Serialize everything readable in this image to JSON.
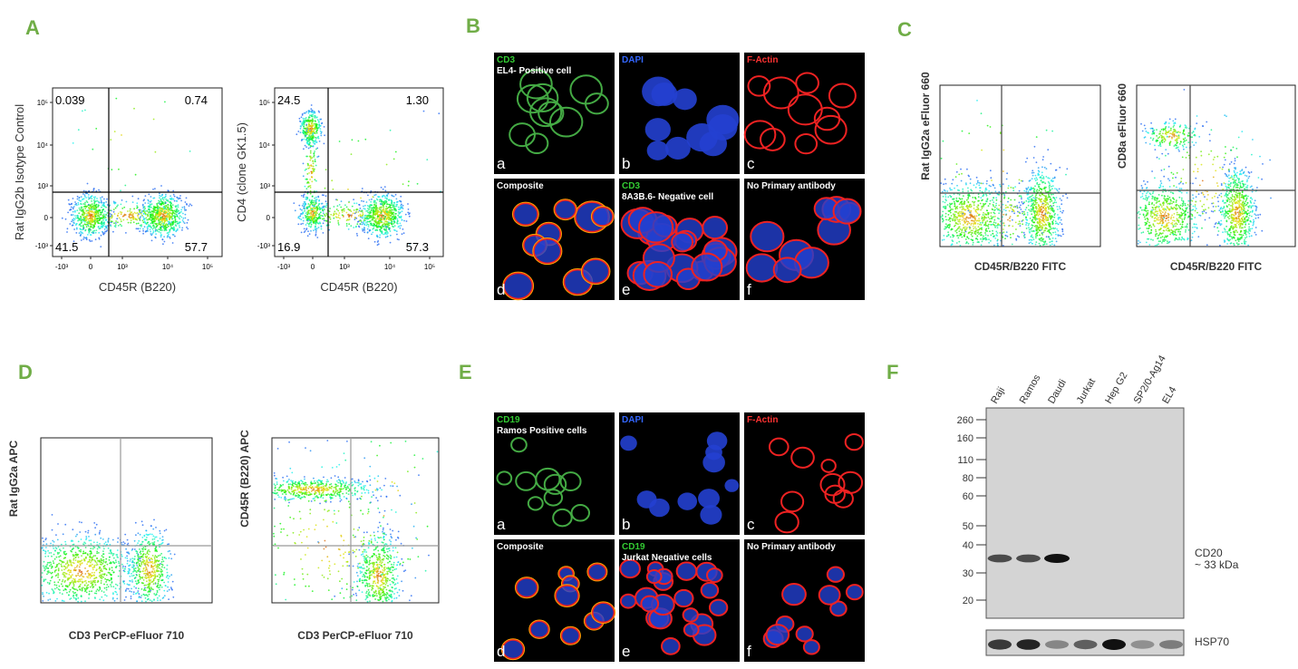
{
  "panels": {
    "A": {
      "label": "A",
      "plots": [
        {
          "y_label": "Rat IgG2b Isotype Control",
          "x_label": "CD45R (B220)",
          "quadrants": {
            "ul": "0.039",
            "ur": "0.74",
            "ll": "41.5",
            "lr": "57.7"
          },
          "x_ticks": [
            "-10³",
            "0",
            "10³",
            "10⁴",
            "10⁵"
          ],
          "y_ticks": [
            "10⁵",
            "10⁴",
            "10³",
            "0",
            "-10³"
          ]
        },
        {
          "y_label": "CD4 (clone GK1.5)",
          "x_label": "CD45R (B220)",
          "quadrants": {
            "ul": "24.5",
            "ur": "1.30",
            "ll": "16.9",
            "lr": "57.3"
          },
          "x_ticks": [
            "-10³",
            "0",
            "10³",
            "10⁴",
            "10⁵"
          ],
          "y_ticks": [
            "10⁵",
            "10⁴",
            "10³",
            "0",
            "-10³"
          ]
        }
      ]
    },
    "B": {
      "label": "B",
      "tiles": [
        {
          "stain": "CD3",
          "caption": "EL4- Positive cell",
          "letter": "a"
        },
        {
          "stain": "DAPI",
          "letter": "b"
        },
        {
          "stain": "F-Actin",
          "letter": "c"
        },
        {
          "caption": "Composite",
          "letter": "d"
        },
        {
          "stain": "CD3",
          "caption": "8A3B.6- Negative cell",
          "letter": "e"
        },
        {
          "caption": "No Primary antibody",
          "letter": "f"
        }
      ]
    },
    "C": {
      "label": "C",
      "plots": [
        {
          "y_label": "Rat IgG2a eFluor 660",
          "x_label": "CD45R/B220 FITC"
        },
        {
          "y_label": "CD8a eFluor 660",
          "x_label": "CD45R/B220 FITC"
        }
      ]
    },
    "D": {
      "label": "D",
      "plots": [
        {
          "y_label": "Rat IgG2a APC",
          "x_label": "CD3 PerCP-eFluor 710"
        },
        {
          "y_label": "CD45R (B220) APC",
          "x_label": "CD3 PerCP-eFluor 710"
        }
      ]
    },
    "E": {
      "label": "E",
      "tiles": [
        {
          "stain": "CD19",
          "caption": "Ramos Positive cells",
          "letter": "a"
        },
        {
          "stain": "DAPI",
          "letter": "b"
        },
        {
          "stain": "F-Actin",
          "letter": "c"
        },
        {
          "caption": "Composite",
          "letter": "d"
        },
        {
          "stain": "CD19",
          "caption": "Jurkat Negative cells",
          "letter": "e"
        },
        {
          "caption": "No Primary antibody",
          "letter": "f"
        }
      ]
    },
    "F": {
      "label": "F",
      "lanes": [
        "Raji",
        "Ramos",
        "Daudi",
        "Jurkat",
        "Hep G2",
        "SP2/0-Ag14",
        "EL4"
      ],
      "markers": [
        "260",
        "160",
        "110",
        "80",
        "60",
        "50",
        "40",
        "30",
        "20"
      ],
      "target": "CD20",
      "target_size": "~ 33 kDa",
      "loading_control": "HSP70"
    }
  }
}
